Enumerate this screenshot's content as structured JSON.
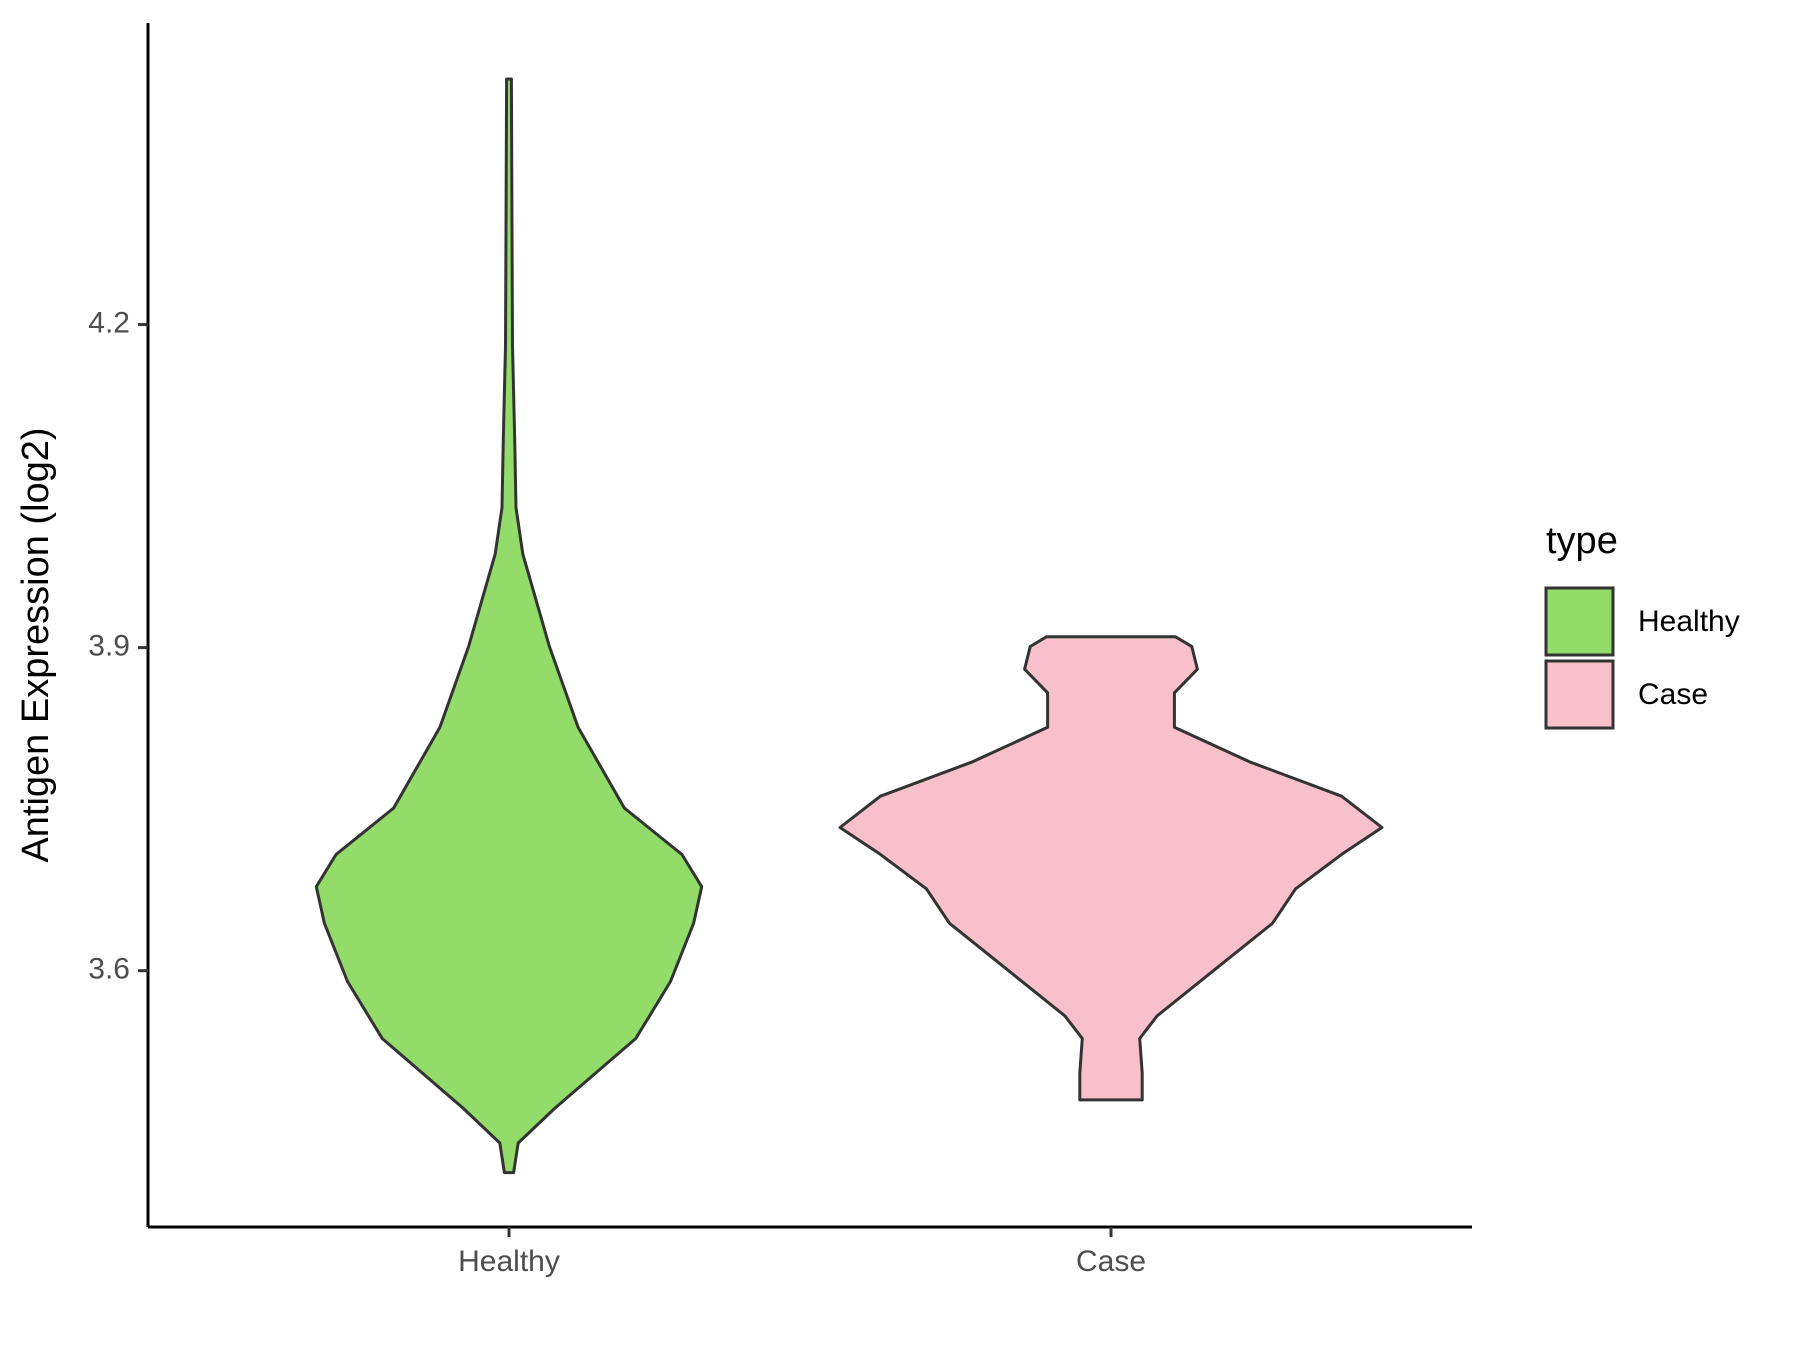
{
  "chart_data": {
    "type": "violin",
    "y_label": "Antigen Expression (log2)",
    "legend_title": "type",
    "categories": [
      "Healthy",
      "Case"
    ],
    "series": [
      {
        "name": "Healthy",
        "color": "#93dc6a",
        "y": [
          3.4125,
          3.44,
          3.4725,
          3.537,
          3.59,
          3.644,
          3.678,
          3.708,
          3.751,
          3.826,
          3.901,
          3.987,
          4.03,
          4.094,
          4.18,
          4.287,
          4.428
        ],
        "width": [
          0.017,
          0.034,
          0.17,
          0.468,
          0.596,
          0.681,
          0.711,
          0.638,
          0.426,
          0.255,
          0.149,
          0.051,
          0.026,
          0.021,
          0.013,
          0.011,
          0.009
        ]
      },
      {
        "name": "Case",
        "color": "#f7c0cb",
        "y": [
          3.48,
          3.505,
          3.537,
          3.558,
          3.601,
          3.644,
          3.676,
          3.708,
          3.733,
          3.762,
          3.794,
          3.826,
          3.858,
          3.88,
          3.901,
          3.91
        ],
        "width": [
          0.115,
          0.115,
          0.106,
          0.17,
          0.383,
          0.596,
          0.681,
          0.851,
          1.0,
          0.851,
          0.511,
          0.234,
          0.234,
          0.319,
          0.298,
          0.238
        ]
      }
    ],
    "ylim": [
      3.362,
      4.48
    ],
    "yticks": [
      3.6,
      3.9,
      4.2
    ],
    "legend": "right"
  }
}
